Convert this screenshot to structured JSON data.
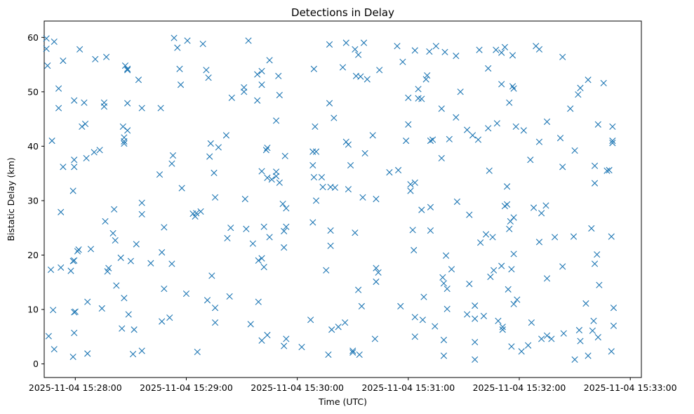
{
  "chart_data": {
    "type": "scatter",
    "title": "Detections in Delay",
    "xlabel": "Time (UTC)",
    "ylabel": "Bistatic Delay (km)",
    "marker": "x",
    "color": "#1f77b4",
    "x_unit": "minutes after 2025-11-04 15:28:00 UTC",
    "xlim": [
      -0.28,
      5.1
    ],
    "ylim": [
      -2.5,
      63
    ],
    "xticks": [
      {
        "value": 0,
        "label": "2025-11-04 15:28:00"
      },
      {
        "value": 1,
        "label": "2025-11-04 15:29:00"
      },
      {
        "value": 2,
        "label": "2025-11-04 15:30:00"
      },
      {
        "value": 3,
        "label": "2025-11-04 15:31:00"
      },
      {
        "value": 4,
        "label": "2025-11-04 15:32:00"
      },
      {
        "value": 5,
        "label": "2025-11-04 15:33:00"
      }
    ],
    "yticks": [
      0,
      10,
      20,
      30,
      40,
      50,
      60
    ],
    "points": [
      [
        -0.26,
        59.8
      ],
      [
        -0.26,
        57.9
      ],
      [
        -0.25,
        54.8
      ],
      [
        -0.21,
        41.0
      ],
      [
        -0.24,
        5.1
      ],
      [
        -0.22,
        17.3
      ],
      [
        -0.2,
        9.9
      ],
      [
        -0.19,
        2.7
      ],
      [
        -0.19,
        59.2
      ],
      [
        -0.15,
        50.6
      ],
      [
        -0.15,
        47.0
      ],
      [
        -0.13,
        27.9
      ],
      [
        -0.13,
        17.7
      ],
      [
        -0.11,
        55.7
      ],
      [
        -0.11,
        36.2
      ],
      [
        -0.04,
        17.1
      ],
      [
        -0.02,
        31.8
      ],
      [
        -0.02,
        18.9
      ],
      [
        -0.02,
        1.3
      ],
      [
        -0.01,
        48.4
      ],
      [
        -0.01,
        37.5
      ],
      [
        -0.01,
        36.2
      ],
      [
        -0.01,
        19.0
      ],
      [
        -0.01,
        9.5
      ],
      [
        -0.01,
        5.7
      ],
      [
        0.0,
        9.6
      ],
      [
        0.02,
        20.7
      ],
      [
        0.03,
        21.0
      ],
      [
        0.04,
        57.8
      ],
      [
        0.06,
        43.6
      ],
      [
        0.08,
        48.0
      ],
      [
        0.09,
        44.1
      ],
      [
        0.1,
        37.8
      ],
      [
        0.11,
        11.4
      ],
      [
        0.11,
        1.9
      ],
      [
        0.14,
        21.1
      ],
      [
        0.17,
        38.9
      ],
      [
        0.18,
        56.0
      ],
      [
        0.22,
        39.3
      ],
      [
        0.24,
        10.2
      ],
      [
        0.26,
        48.0
      ],
      [
        0.26,
        47.3
      ],
      [
        0.27,
        26.2
      ],
      [
        0.28,
        56.4
      ],
      [
        0.29,
        17.0
      ],
      [
        0.3,
        17.6
      ],
      [
        0.34,
        24.0
      ],
      [
        0.35,
        28.4
      ],
      [
        0.36,
        22.7
      ],
      [
        0.37,
        14.4
      ],
      [
        0.41,
        19.5
      ],
      [
        0.42,
        6.5
      ],
      [
        0.43,
        43.6
      ],
      [
        0.44,
        41.6
      ],
      [
        0.44,
        40.9
      ],
      [
        0.44,
        40.5
      ],
      [
        0.44,
        12.1
      ],
      [
        0.45,
        54.8
      ],
      [
        0.47,
        54.2
      ],
      [
        0.47,
        54.0
      ],
      [
        0.47,
        47.9
      ],
      [
        0.47,
        42.9
      ],
      [
        0.48,
        9.1
      ],
      [
        0.5,
        18.9
      ],
      [
        0.52,
        1.8
      ],
      [
        0.53,
        6.3
      ],
      [
        0.55,
        22.0
      ],
      [
        0.57,
        52.2
      ],
      [
        0.6,
        47.0
      ],
      [
        0.6,
        29.6
      ],
      [
        0.6,
        27.5
      ],
      [
        0.6,
        2.4
      ],
      [
        0.68,
        18.5
      ],
      [
        0.76,
        34.8
      ],
      [
        0.77,
        47.0
      ],
      [
        0.78,
        20.5
      ],
      [
        0.78,
        7.8
      ],
      [
        0.8,
        25.1
      ],
      [
        0.8,
        13.8
      ],
      [
        0.85,
        8.5
      ],
      [
        0.87,
        18.4
      ],
      [
        0.87,
        36.8
      ],
      [
        0.88,
        38.3
      ],
      [
        0.89,
        59.9
      ],
      [
        0.92,
        58.1
      ],
      [
        0.94,
        54.2
      ],
      [
        0.95,
        51.3
      ],
      [
        0.96,
        32.3
      ],
      [
        1.0,
        12.9
      ],
      [
        1.01,
        59.4
      ],
      [
        1.06,
        27.6
      ],
      [
        1.08,
        27.1
      ],
      [
        1.09,
        27.7
      ],
      [
        1.1,
        2.2
      ],
      [
        1.13,
        28.0
      ],
      [
        1.15,
        58.8
      ],
      [
        1.18,
        54.0
      ],
      [
        1.19,
        11.7
      ],
      [
        1.2,
        52.6
      ],
      [
        1.21,
        38.1
      ],
      [
        1.22,
        40.5
      ],
      [
        1.23,
        16.2
      ],
      [
        1.25,
        35.1
      ],
      [
        1.26,
        30.6
      ],
      [
        1.26,
        10.3
      ],
      [
        1.26,
        7.6
      ],
      [
        1.29,
        39.8
      ],
      [
        1.36,
        42.0
      ],
      [
        1.37,
        23.1
      ],
      [
        1.39,
        12.4
      ],
      [
        1.4,
        25.0
      ],
      [
        1.41,
        48.9
      ],
      [
        1.52,
        50.8
      ],
      [
        1.52,
        50.0
      ],
      [
        1.53,
        30.3
      ],
      [
        1.54,
        24.8
      ],
      [
        1.56,
        59.4
      ],
      [
        1.58,
        7.3
      ],
      [
        1.6,
        22.1
      ],
      [
        1.64,
        53.2
      ],
      [
        1.64,
        48.4
      ],
      [
        1.65,
        11.4
      ],
      [
        1.65,
        19.0
      ],
      [
        1.68,
        53.8
      ],
      [
        1.68,
        51.3
      ],
      [
        1.68,
        35.4
      ],
      [
        1.68,
        19.4
      ],
      [
        1.68,
        4.3
      ],
      [
        1.7,
        25.2
      ],
      [
        1.7,
        17.8
      ],
      [
        1.72,
        39.3
      ],
      [
        1.73,
        39.7
      ],
      [
        1.73,
        34.2
      ],
      [
        1.73,
        5.3
      ],
      [
        1.75,
        55.8
      ],
      [
        1.75,
        23.3
      ],
      [
        1.77,
        33.9
      ],
      [
        1.81,
        44.7
      ],
      [
        1.81,
        35.3
      ],
      [
        1.81,
        34.5
      ],
      [
        1.83,
        52.9
      ],
      [
        1.84,
        49.4
      ],
      [
        1.84,
        33.3
      ],
      [
        1.87,
        29.4
      ],
      [
        1.88,
        24.4
      ],
      [
        1.88,
        21.4
      ],
      [
        1.88,
        3.3
      ],
      [
        1.89,
        38.2
      ],
      [
        1.9,
        28.6
      ],
      [
        1.9,
        25.2
      ],
      [
        1.9,
        4.6
      ],
      [
        2.04,
        3.1
      ],
      [
        2.12,
        8.1
      ],
      [
        2.14,
        39.0
      ],
      [
        2.14,
        36.5
      ],
      [
        2.14,
        26.0
      ],
      [
        2.15,
        54.2
      ],
      [
        2.15,
        34.3
      ],
      [
        2.16,
        43.6
      ],
      [
        2.17,
        39.0
      ],
      [
        2.17,
        30.0
      ],
      [
        2.22,
        34.3
      ],
      [
        2.23,
        32.5
      ],
      [
        2.26,
        17.2
      ],
      [
        2.28,
        1.7
      ],
      [
        2.29,
        58.7
      ],
      [
        2.29,
        47.9
      ],
      [
        2.3,
        24.5
      ],
      [
        2.3,
        21.7
      ],
      [
        2.3,
        32.5
      ],
      [
        2.31,
        6.3
      ],
      [
        2.33,
        45.2
      ],
      [
        2.34,
        32.4
      ],
      [
        2.37,
        6.8
      ],
      [
        2.41,
        54.5
      ],
      [
        2.43,
        7.6
      ],
      [
        2.44,
        59.0
      ],
      [
        2.44,
        40.8
      ],
      [
        2.46,
        32.1
      ],
      [
        2.46,
        40.3
      ],
      [
        2.48,
        36.5
      ],
      [
        2.5,
        2.4
      ],
      [
        2.5,
        2.1
      ],
      [
        2.52,
        57.8
      ],
      [
        2.52,
        24.1
      ],
      [
        2.53,
        52.9
      ],
      [
        2.55,
        56.8
      ],
      [
        2.55,
        13.6
      ],
      [
        2.56,
        1.7
      ],
      [
        2.57,
        52.8
      ],
      [
        2.58,
        10.6
      ],
      [
        2.59,
        30.6
      ],
      [
        2.6,
        59.0
      ],
      [
        2.61,
        38.7
      ],
      [
        2.63,
        52.3
      ],
      [
        2.68,
        42.0
      ],
      [
        2.7,
        4.6
      ],
      [
        2.71,
        30.3
      ],
      [
        2.71,
        17.6
      ],
      [
        2.71,
        15.1
      ],
      [
        2.73,
        16.8
      ],
      [
        2.74,
        54.0
      ],
      [
        2.83,
        35.2
      ],
      [
        2.9,
        58.4
      ],
      [
        2.91,
        35.6
      ],
      [
        2.93,
        10.6
      ],
      [
        2.95,
        55.5
      ],
      [
        2.98,
        41.0
      ],
      [
        3.0,
        48.9
      ],
      [
        3.0,
        44.0
      ],
      [
        3.02,
        33.0
      ],
      [
        3.02,
        31.8
      ],
      [
        3.04,
        24.6
      ],
      [
        3.05,
        20.9
      ],
      [
        3.06,
        57.6
      ],
      [
        3.06,
        33.3
      ],
      [
        3.06,
        8.6
      ],
      [
        3.06,
        5.0
      ],
      [
        3.09,
        50.5
      ],
      [
        3.09,
        48.8
      ],
      [
        3.12,
        48.7
      ],
      [
        3.12,
        28.3
      ],
      [
        3.13,
        8.1
      ],
      [
        3.14,
        12.3
      ],
      [
        3.16,
        52.3
      ],
      [
        3.17,
        53.0
      ],
      [
        3.19,
        57.4
      ],
      [
        3.2,
        28.8
      ],
      [
        3.2,
        24.5
      ],
      [
        3.2,
        41.0
      ],
      [
        3.22,
        41.2
      ],
      [
        3.24,
        6.9
      ],
      [
        3.25,
        58.4
      ],
      [
        3.3,
        46.9
      ],
      [
        3.3,
        37.8
      ],
      [
        3.31,
        15.9
      ],
      [
        3.32,
        14.8
      ],
      [
        3.32,
        4.4
      ],
      [
        3.32,
        1.5
      ],
      [
        3.33,
        57.3
      ],
      [
        3.34,
        19.9
      ],
      [
        3.35,
        13.8
      ],
      [
        3.35,
        10.1
      ],
      [
        3.37,
        41.3
      ],
      [
        3.39,
        17.4
      ],
      [
        3.43,
        56.6
      ],
      [
        3.43,
        45.3
      ],
      [
        3.44,
        29.8
      ],
      [
        3.47,
        50.0
      ],
      [
        3.53,
        43.0
      ],
      [
        3.53,
        9.1
      ],
      [
        3.55,
        27.4
      ],
      [
        3.55,
        14.7
      ],
      [
        3.58,
        42.0
      ],
      [
        3.6,
        10.7
      ],
      [
        3.6,
        8.3
      ],
      [
        3.6,
        4.0
      ],
      [
        3.6,
        0.8
      ],
      [
        3.63,
        41.2
      ],
      [
        3.64,
        57.7
      ],
      [
        3.65,
        22.3
      ],
      [
        3.68,
        8.8
      ],
      [
        3.7,
        23.8
      ],
      [
        3.72,
        54.3
      ],
      [
        3.72,
        43.3
      ],
      [
        3.73,
        35.5
      ],
      [
        3.74,
        16.0
      ],
      [
        3.76,
        23.3
      ],
      [
        3.77,
        17.2
      ],
      [
        3.79,
        57.7
      ],
      [
        3.8,
        44.2
      ],
      [
        3.81,
        7.9
      ],
      [
        3.84,
        57.2
      ],
      [
        3.84,
        51.4
      ],
      [
        3.84,
        18.0
      ],
      [
        3.85,
        6.8
      ],
      [
        3.85,
        6.3
      ],
      [
        3.87,
        29.0
      ],
      [
        3.87,
        58.2
      ],
      [
        3.89,
        32.6
      ],
      [
        3.89,
        29.3
      ],
      [
        3.9,
        13.7
      ],
      [
        3.91,
        48.0
      ],
      [
        3.91,
        24.8
      ],
      [
        3.92,
        26.2
      ],
      [
        3.93,
        17.4
      ],
      [
        3.93,
        3.2
      ],
      [
        3.94,
        56.7
      ],
      [
        3.94,
        51.0
      ],
      [
        3.95,
        50.6
      ],
      [
        3.95,
        26.9
      ],
      [
        3.95,
        20.2
      ],
      [
        3.95,
        11.0
      ],
      [
        3.97,
        43.6
      ],
      [
        3.98,
        11.8
      ],
      [
        4.02,
        2.3
      ],
      [
        4.04,
        42.9
      ],
      [
        4.08,
        3.4
      ],
      [
        4.1,
        37.5
      ],
      [
        4.11,
        7.6
      ],
      [
        4.13,
        28.7
      ],
      [
        4.15,
        58.4
      ],
      [
        4.18,
        57.8
      ],
      [
        4.18,
        40.8
      ],
      [
        4.18,
        22.4
      ],
      [
        4.2,
        4.6
      ],
      [
        4.2,
        27.7
      ],
      [
        4.24,
        29.1
      ],
      [
        4.25,
        15.7
      ],
      [
        4.25,
        44.5
      ],
      [
        4.25,
        5.2
      ],
      [
        4.29,
        4.6
      ],
      [
        4.32,
        23.3
      ],
      [
        4.37,
        41.5
      ],
      [
        4.39,
        56.4
      ],
      [
        4.39,
        36.2
      ],
      [
        4.39,
        17.9
      ],
      [
        4.4,
        5.6
      ],
      [
        4.46,
        46.9
      ],
      [
        4.49,
        23.4
      ],
      [
        4.5,
        0.8
      ],
      [
        4.5,
        39.2
      ],
      [
        4.53,
        49.5
      ],
      [
        4.54,
        6.2
      ],
      [
        4.55,
        50.7
      ],
      [
        4.55,
        4.2
      ],
      [
        4.6,
        11.1
      ],
      [
        4.62,
        52.2
      ],
      [
        4.62,
        1.5
      ],
      [
        4.65,
        24.9
      ],
      [
        4.66,
        6.1
      ],
      [
        4.67,
        7.9
      ],
      [
        4.68,
        36.4
      ],
      [
        4.68,
        33.2
      ],
      [
        4.68,
        18.4
      ],
      [
        4.7,
        20.1
      ],
      [
        4.71,
        4.9
      ],
      [
        4.71,
        44.0
      ],
      [
        4.72,
        14.5
      ],
      [
        4.76,
        51.6
      ],
      [
        4.79,
        35.5
      ],
      [
        4.81,
        35.6
      ],
      [
        4.84,
        43.6
      ],
      [
        4.84,
        41.0
      ],
      [
        4.84,
        40.6
      ],
      [
        4.83,
        23.4
      ],
      [
        4.83,
        2.3
      ],
      [
        4.85,
        10.3
      ],
      [
        4.85,
        7.0
      ]
    ]
  }
}
